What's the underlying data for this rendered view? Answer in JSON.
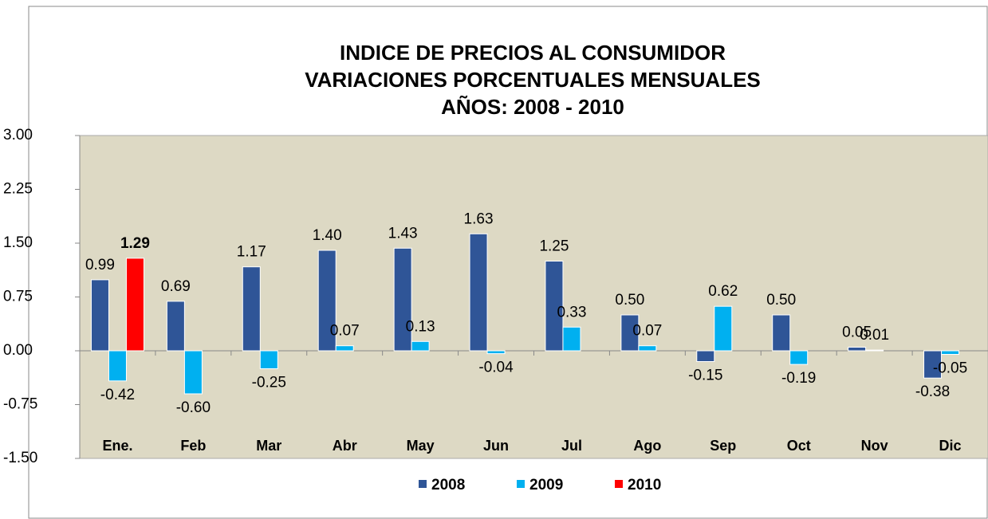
{
  "chart_data": {
    "type": "bar",
    "title": [
      "INDICE DE PRECIOS AL CONSUMIDOR",
      "VARIACIONES PORCENTUALES MENSUALES",
      "AÑOS: 2008 - 2010"
    ],
    "categories": [
      "Ene.",
      "Feb",
      "Mar",
      "Abr",
      "May",
      "Jun",
      "Jul",
      "Ago",
      "Sep",
      "Oct",
      "Nov",
      "Dic"
    ],
    "series": [
      {
        "name": "2008",
        "color": "#2f5597",
        "values": [
          0.99,
          0.69,
          1.17,
          1.4,
          1.43,
          1.63,
          1.25,
          0.5,
          -0.15,
          0.5,
          0.05,
          -0.38
        ],
        "value_labels": [
          "0.99",
          "0.69",
          "1.17",
          "1.40",
          "1.43",
          "1.63",
          "1.25",
          "0.50",
          "-0.15",
          "0.50",
          "0.05",
          "-0.38"
        ]
      },
      {
        "name": "2009",
        "color": "#00b0f0",
        "values": [
          -0.42,
          -0.6,
          -0.25,
          0.07,
          0.13,
          -0.04,
          0.33,
          0.07,
          0.62,
          -0.19,
          0.01,
          -0.05
        ],
        "value_labels": [
          "-0.42",
          "-0.60",
          "-0.25",
          "0.07",
          "0.13",
          "-0.04",
          "0.33",
          "0.07",
          "0.62",
          "-0.19",
          "0.01",
          "-0.05"
        ]
      },
      {
        "name": "2010",
        "color": "#ff0000",
        "values": [
          1.29,
          null,
          null,
          null,
          null,
          null,
          null,
          null,
          null,
          null,
          null,
          null
        ],
        "value_labels": [
          "1.29",
          null,
          null,
          null,
          null,
          null,
          null,
          null,
          null,
          null,
          null,
          null
        ]
      }
    ],
    "ylim": [
      -1.5,
      3
    ],
    "yticks": [
      {
        "value": -1.5,
        "label": "-1.50"
      },
      {
        "value": -0.75,
        "label": "-0.75"
      },
      {
        "value": 0,
        "label": "0.00"
      },
      {
        "value": 0.75,
        "label": "0.75"
      },
      {
        "value": 1.5,
        "label": "1.50"
      },
      {
        "value": 2.25,
        "label": "2.25"
      },
      {
        "value": 3,
        "label": "3.00"
      }
    ],
    "grid": false,
    "legend": "bottom"
  }
}
